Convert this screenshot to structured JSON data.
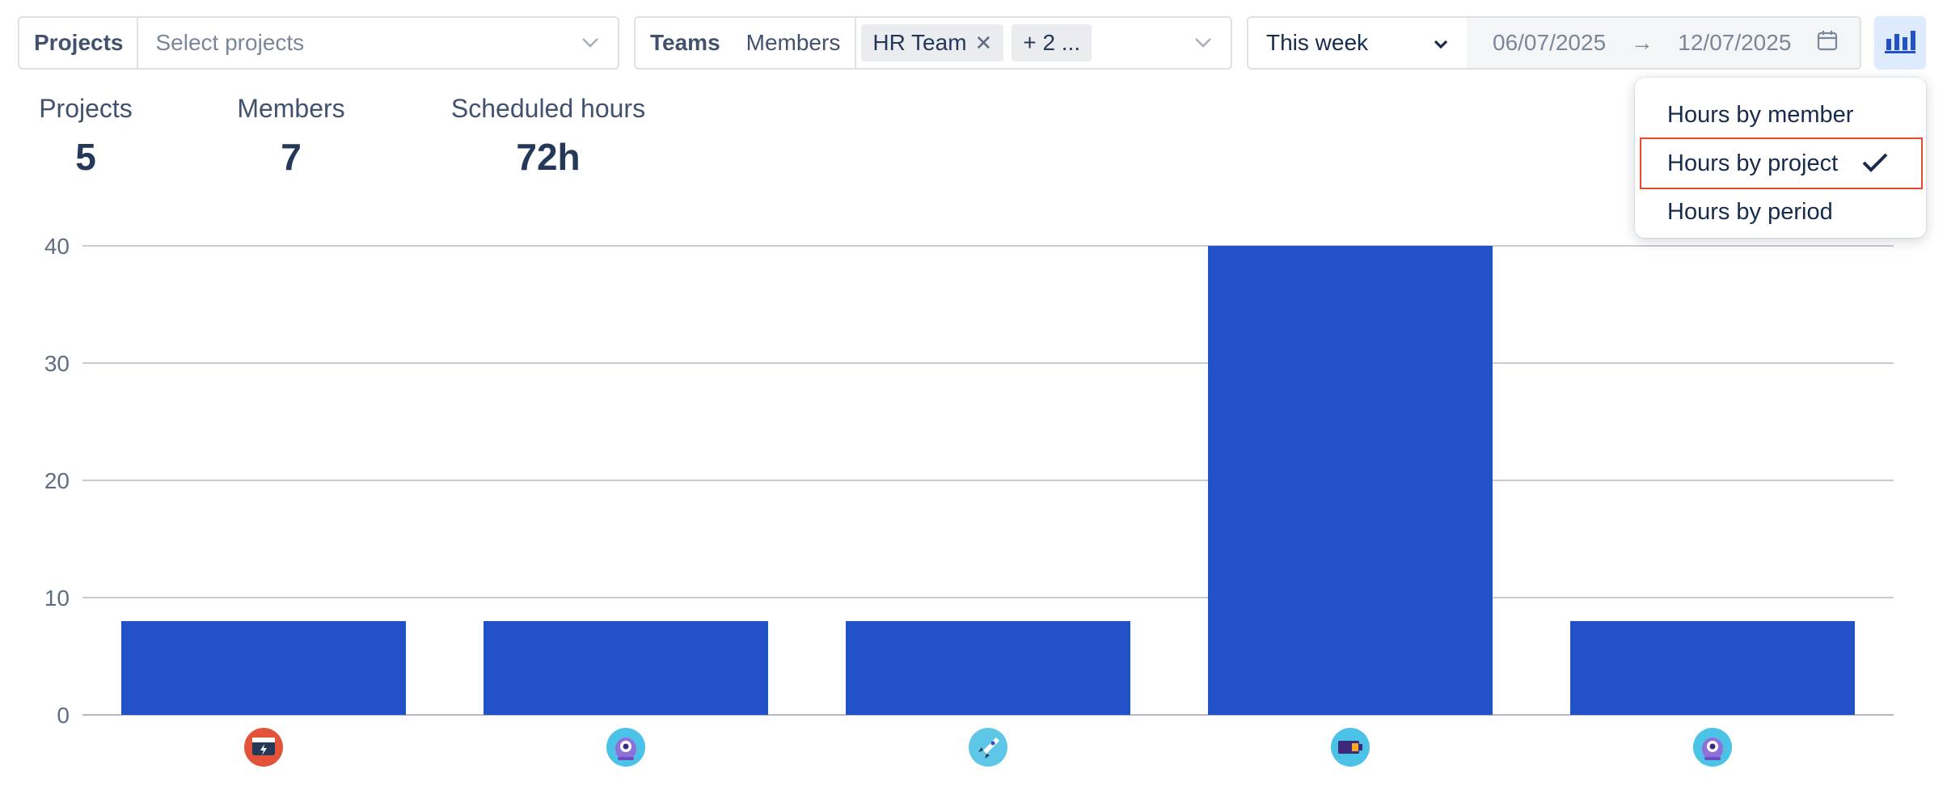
{
  "filters": {
    "projects_label": "Projects",
    "projects_placeholder": "Select projects",
    "teams_label": "Teams",
    "members_label": "Members",
    "chips": [
      "HR Team",
      "+ 2 ..."
    ],
    "period": "This week",
    "date_from": "06/07/2025",
    "date_arrow": "→",
    "date_to": "12/07/2025"
  },
  "stats": [
    {
      "label": "Projects",
      "value": "5"
    },
    {
      "label": "Members",
      "value": "7"
    },
    {
      "label": "Scheduled hours",
      "value": "72h"
    }
  ],
  "menu": {
    "items": [
      "Hours by member",
      "Hours by project",
      "Hours by period"
    ],
    "selected": "Hours by project"
  },
  "colors": {
    "bar": "#2351c7",
    "accent": "#2351c7",
    "highlight_border": "#e34a2e"
  },
  "chart_data": {
    "type": "bar",
    "categories": [
      "project-1",
      "project-2",
      "project-3",
      "project-4",
      "project-5"
    ],
    "category_icons": [
      "browser-bolt-icon",
      "robot-icon",
      "rocket-icon",
      "battery-icon",
      "robot-icon"
    ],
    "values": [
      8,
      8,
      8,
      40,
      8
    ],
    "yticks": [
      0,
      10,
      20,
      30,
      40
    ],
    "ylim": [
      0,
      40
    ],
    "title": "",
    "xlabel": "",
    "ylabel": "",
    "grid": true
  }
}
